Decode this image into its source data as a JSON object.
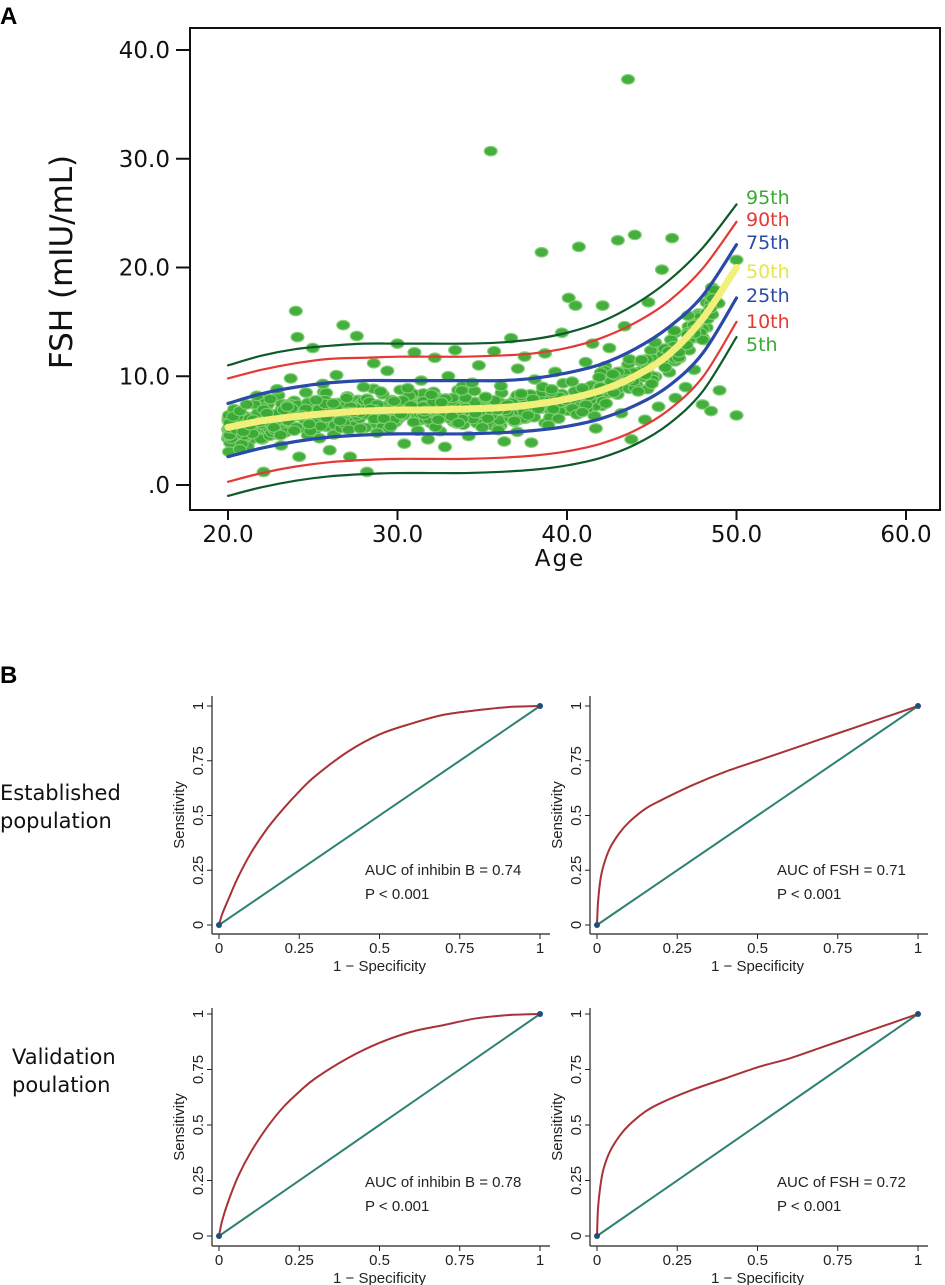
{
  "panel_a_letter": "A",
  "panel_b_letter": "B",
  "chart_data": [
    {
      "type": "scatter",
      "panel": "A",
      "title": "",
      "xlabel": "Age",
      "ylabel": "FSH (mIU/mL)",
      "xlim": [
        20,
        60
      ],
      "ylim": [
        0,
        40
      ],
      "xticks": [
        20,
        30,
        40,
        50,
        60
      ],
      "xtick_labels": [
        "20.0",
        "30.0",
        "40.0",
        "50.0",
        "60.0"
      ],
      "yticks": [
        0,
        10,
        20,
        30,
        40
      ],
      "ytick_labels": [
        ".0",
        "10.0",
        "20.0",
        "30.0",
        "40.0"
      ],
      "centile_curves": [
        {
          "name": "95th",
          "color": "#0f5a2a",
          "label_color": "#3aaa35",
          "ages": [
            20,
            22,
            24,
            26,
            28,
            30,
            32,
            34,
            36,
            38,
            40,
            42,
            44,
            46,
            48,
            50
          ],
          "values": [
            11.0,
            11.9,
            12.5,
            12.8,
            13.0,
            13.0,
            13.0,
            13.0,
            13.1,
            13.4,
            14.0,
            15.0,
            16.6,
            18.8,
            21.8,
            25.8
          ]
        },
        {
          "name": "90th",
          "color": "#e53935",
          "label_color": "#e53935",
          "ages": [
            20,
            22,
            24,
            26,
            28,
            30,
            32,
            34,
            36,
            38,
            40,
            42,
            44,
            46,
            48,
            50
          ],
          "values": [
            9.8,
            10.6,
            11.2,
            11.6,
            11.7,
            11.8,
            11.8,
            11.8,
            11.9,
            12.1,
            12.6,
            13.5,
            14.9,
            16.9,
            19.9,
            24.2
          ]
        },
        {
          "name": "75th",
          "color": "#2a4aa8",
          "label_color": "#2a4aa8",
          "ages": [
            20,
            22,
            24,
            26,
            28,
            30,
            32,
            34,
            36,
            38,
            40,
            42,
            44,
            46,
            48,
            50
          ],
          "values": [
            7.5,
            8.4,
            9.0,
            9.4,
            9.6,
            9.6,
            9.6,
            9.6,
            9.6,
            9.8,
            10.3,
            11.1,
            12.5,
            14.5,
            17.4,
            22.1
          ]
        },
        {
          "name": "50th",
          "color": "#f2ef7a",
          "label_color": "#e6e64a",
          "ages": [
            20,
            22,
            24,
            26,
            28,
            30,
            32,
            34,
            36,
            38,
            40,
            42,
            44,
            46,
            48,
            50
          ],
          "values": [
            5.3,
            5.9,
            6.3,
            6.6,
            6.8,
            6.9,
            6.9,
            7.0,
            7.1,
            7.4,
            7.9,
            8.7,
            10.0,
            12.0,
            15.3,
            20.0
          ]
        },
        {
          "name": "25th",
          "color": "#2a4aa8",
          "label_color": "#2a4aa8",
          "ages": [
            20,
            22,
            24,
            26,
            28,
            30,
            32,
            34,
            36,
            38,
            40,
            42,
            44,
            46,
            48,
            50
          ],
          "values": [
            2.6,
            3.4,
            4.0,
            4.4,
            4.6,
            4.7,
            4.7,
            4.7,
            4.8,
            5.0,
            5.4,
            6.1,
            7.3,
            9.1,
            12.1,
            17.2
          ]
        },
        {
          "name": "10th",
          "color": "#e53935",
          "label_color": "#e53935",
          "ages": [
            20,
            22,
            24,
            26,
            28,
            30,
            32,
            34,
            36,
            38,
            40,
            42,
            44,
            46,
            48,
            50
          ],
          "values": [
            0.3,
            1.1,
            1.7,
            2.1,
            2.3,
            2.4,
            2.4,
            2.4,
            2.5,
            2.7,
            3.1,
            3.8,
            5.0,
            6.9,
            9.9,
            15.0
          ]
        },
        {
          "name": "5th",
          "color": "#0f5a2a",
          "label_color": "#3aaa35",
          "ages": [
            20,
            22,
            24,
            26,
            28,
            30,
            32,
            34,
            36,
            38,
            40,
            42,
            44,
            46,
            48,
            50
          ],
          "values": [
            -1.0,
            -0.2,
            0.4,
            0.8,
            1.0,
            1.1,
            1.1,
            1.1,
            1.2,
            1.4,
            1.8,
            2.5,
            3.7,
            5.6,
            8.6,
            13.6
          ]
        }
      ],
      "scatter_points": [
        [
          20.1,
          5.7
        ],
        [
          20.3,
          6.3
        ],
        [
          20.5,
          5.1
        ],
        [
          20.7,
          6.8
        ],
        [
          20.9,
          4.9
        ],
        [
          21.1,
          7.4
        ],
        [
          21.3,
          5.5
        ],
        [
          21.5,
          6.0
        ],
        [
          21.7,
          8.2
        ],
        [
          21.9,
          5.8
        ],
        [
          22.1,
          1.2
        ],
        [
          22.3,
          6.6
        ],
        [
          22.5,
          7.9
        ],
        [
          22.7,
          5.3
        ],
        [
          22.9,
          8.8
        ],
        [
          23.1,
          4.6
        ],
        [
          23.3,
          6.9
        ],
        [
          23.5,
          7.2
        ],
        [
          23.7,
          9.8
        ],
        [
          23.9,
          5.0
        ],
        [
          24.0,
          16.0
        ],
        [
          24.1,
          13.6
        ],
        [
          24.2,
          2.6
        ],
        [
          24.4,
          6.4
        ],
        [
          24.6,
          8.5
        ],
        [
          24.8,
          5.6
        ],
        [
          25.0,
          12.6
        ],
        [
          25.2,
          7.8
        ],
        [
          25.4,
          4.3
        ],
        [
          25.6,
          9.3
        ],
        [
          25.8,
          6.2
        ],
        [
          26.0,
          3.2
        ],
        [
          26.2,
          7.5
        ],
        [
          26.4,
          10.1
        ],
        [
          26.6,
          5.9
        ],
        [
          26.8,
          14.7
        ],
        [
          27.0,
          8.0
        ],
        [
          27.2,
          2.6
        ],
        [
          27.4,
          6.7
        ],
        [
          27.6,
          13.7
        ],
        [
          27.8,
          5.2
        ],
        [
          28.0,
          9.0
        ],
        [
          28.2,
          1.2
        ],
        [
          28.4,
          7.0
        ],
        [
          28.6,
          11.2
        ],
        [
          28.8,
          4.8
        ],
        [
          29.0,
          8.6
        ],
        [
          29.2,
          6.1
        ],
        [
          29.4,
          10.5
        ],
        [
          29.6,
          5.4
        ],
        [
          29.8,
          7.7
        ],
        [
          30.0,
          13.0
        ],
        [
          30.2,
          6.5
        ],
        [
          30.4,
          3.8
        ],
        [
          30.6,
          8.9
        ],
        [
          30.8,
          7.3
        ],
        [
          31.0,
          12.2
        ],
        [
          31.2,
          5.0
        ],
        [
          31.4,
          9.6
        ],
        [
          31.6,
          6.8
        ],
        [
          31.8,
          4.2
        ],
        [
          32.0,
          8.3
        ],
        [
          32.2,
          11.7
        ],
        [
          32.4,
          6.0
        ],
        [
          32.6,
          7.6
        ],
        [
          32.8,
          3.5
        ],
        [
          33.0,
          10.0
        ],
        [
          33.2,
          6.3
        ],
        [
          33.4,
          12.4
        ],
        [
          33.6,
          5.7
        ],
        [
          33.8,
          8.7
        ],
        [
          34.0,
          7.1
        ],
        [
          34.2,
          4.5
        ],
        [
          34.4,
          9.4
        ],
        [
          34.6,
          6.6
        ],
        [
          34.8,
          11.0
        ],
        [
          35.0,
          5.3
        ],
        [
          35.2,
          8.1
        ],
        [
          35.5,
          30.7
        ],
        [
          35.7,
          12.3
        ],
        [
          35.9,
          6.9
        ],
        [
          36.1,
          9.1
        ],
        [
          36.3,
          4.0
        ],
        [
          36.5,
          7.4
        ],
        [
          36.7,
          13.5
        ],
        [
          36.9,
          5.9
        ],
        [
          37.1,
          10.7
        ],
        [
          37.3,
          8.4
        ],
        [
          37.5,
          11.8
        ],
        [
          37.7,
          6.4
        ],
        [
          37.9,
          3.9
        ],
        [
          38.1,
          9.7
        ],
        [
          38.3,
          7.0
        ],
        [
          38.5,
          21.4
        ],
        [
          38.7,
          12.1
        ],
        [
          38.9,
          5.5
        ],
        [
          39.1,
          8.8
        ],
        [
          39.3,
          10.4
        ],
        [
          39.5,
          6.1
        ],
        [
          39.7,
          14.0
        ],
        [
          39.9,
          7.8
        ],
        [
          40.1,
          17.2
        ],
        [
          40.3,
          9.5
        ],
        [
          40.5,
          16.5
        ],
        [
          40.7,
          21.9
        ],
        [
          40.9,
          6.7
        ],
        [
          41.1,
          11.3
        ],
        [
          41.3,
          8.2
        ],
        [
          41.5,
          13.0
        ],
        [
          41.7,
          5.2
        ],
        [
          41.9,
          9.9
        ],
        [
          42.1,
          16.5
        ],
        [
          42.3,
          7.5
        ],
        [
          42.5,
          12.6
        ],
        [
          42.7,
          10.2
        ],
        [
          43.0,
          22.5
        ],
        [
          43.2,
          6.6
        ],
        [
          43.4,
          14.6
        ],
        [
          43.6,
          37.3
        ],
        [
          43.8,
          4.2
        ],
        [
          44.0,
          23.0
        ],
        [
          44.2,
          8.6
        ],
        [
          44.4,
          11.5
        ],
        [
          44.6,
          6.0
        ],
        [
          44.8,
          16.8
        ],
        [
          45.0,
          9.3
        ],
        [
          45.2,
          13.1
        ],
        [
          45.4,
          7.2
        ],
        [
          45.6,
          19.8
        ],
        [
          45.8,
          10.8
        ],
        [
          46.0,
          12.3
        ],
        [
          46.2,
          22.7
        ],
        [
          46.4,
          8.0
        ],
        [
          46.6,
          12.2
        ],
        [
          47.0,
          9.0
        ],
        [
          47.5,
          10.6
        ],
        [
          48.0,
          7.4
        ],
        [
          48.5,
          6.8
        ],
        [
          49.0,
          8.7
        ],
        [
          50.0,
          6.4
        ],
        [
          50.0,
          20.7
        ]
      ],
      "scatter_band": {
        "age_range": [
          20,
          49
        ],
        "median_offset_range": [
          -2.5,
          2.5
        ],
        "count": 520,
        "color": "#3aaa35"
      }
    },
    {
      "type": "line",
      "panel": "B",
      "row_label": "Established population",
      "row_label_lines": [
        "Established",
        "population"
      ],
      "xlabel": "1 − Specificity",
      "ylabel": "Sensitivity",
      "xlim": [
        0,
        1
      ],
      "ylim": [
        0,
        1
      ],
      "xtick_labels": [
        "0",
        "0.25",
        "0.5",
        "0.75",
        "1"
      ],
      "ytick_labels": [
        "0",
        "0.25",
        "0.5",
        "0.75",
        "1"
      ],
      "series": [
        {
          "name": "ROC curve",
          "color": "#a83237",
          "x": [
            0,
            0.01,
            0.03,
            0.06,
            0.1,
            0.15,
            0.2,
            0.25,
            0.3,
            0.4,
            0.5,
            0.6,
            0.7,
            0.8,
            0.9,
            1
          ],
          "y": [
            0,
            0.05,
            0.12,
            0.22,
            0.33,
            0.44,
            0.53,
            0.61,
            0.68,
            0.79,
            0.87,
            0.92,
            0.96,
            0.98,
            0.995,
            1
          ]
        },
        {
          "name": "Reference line",
          "color": "#2e8073",
          "x": [
            0,
            1
          ],
          "y": [
            0,
            1
          ]
        }
      ],
      "annotation_lines": [
        "AUC of inhibin B = 0.74",
        "P < 0.001"
      ]
    },
    {
      "type": "line",
      "panel": "B",
      "row_label": "Established population",
      "xlabel": "1 − Specificity",
      "ylabel": "Sensitivity",
      "xlim": [
        0,
        1
      ],
      "ylim": [
        0,
        1
      ],
      "xtick_labels": [
        "0",
        "0.25",
        "0.5",
        "0.75",
        "1"
      ],
      "ytick_labels": [
        "0",
        "0.25",
        "0.5",
        "0.75",
        "1"
      ],
      "series": [
        {
          "name": "ROC curve",
          "color": "#a83237",
          "x": [
            0,
            0.003,
            0.01,
            0.02,
            0.04,
            0.07,
            0.1,
            0.15,
            0.2,
            0.3,
            0.4,
            0.5,
            0.6,
            0.7,
            0.8,
            0.9,
            1
          ],
          "y": [
            0,
            0.1,
            0.2,
            0.27,
            0.35,
            0.42,
            0.47,
            0.53,
            0.57,
            0.64,
            0.7,
            0.75,
            0.8,
            0.85,
            0.9,
            0.95,
            1
          ]
        },
        {
          "name": "Reference line",
          "color": "#2e8073",
          "x": [
            0,
            1
          ],
          "y": [
            0,
            1
          ]
        }
      ],
      "annotation_lines": [
        "AUC of FSH = 0.71",
        "P < 0.001"
      ]
    },
    {
      "type": "line",
      "panel": "B",
      "row_label": "Validation poulation",
      "row_label_lines": [
        "Validation",
        "poulation"
      ],
      "xlabel": "1 − Specificity",
      "ylabel": "Sensitivity",
      "xlim": [
        0,
        1
      ],
      "ylim": [
        0,
        1
      ],
      "xtick_labels": [
        "0",
        "0.25",
        "0.5",
        "0.75",
        "1"
      ],
      "ytick_labels": [
        "0",
        "0.25",
        "0.5",
        "0.75",
        "1"
      ],
      "series": [
        {
          "name": "ROC curve",
          "color": "#a83237",
          "x": [
            0,
            0.01,
            0.03,
            0.06,
            0.1,
            0.15,
            0.2,
            0.25,
            0.3,
            0.4,
            0.5,
            0.6,
            0.7,
            0.8,
            0.9,
            1
          ],
          "y": [
            0,
            0.07,
            0.16,
            0.27,
            0.38,
            0.49,
            0.58,
            0.65,
            0.71,
            0.8,
            0.87,
            0.92,
            0.95,
            0.98,
            0.995,
            1
          ]
        },
        {
          "name": "Reference line",
          "color": "#2e8073",
          "x": [
            0,
            1
          ],
          "y": [
            0,
            1
          ]
        }
      ],
      "annotation_lines": [
        "AUC of inhibin B = 0.78",
        "P < 0.001"
      ]
    },
    {
      "type": "line",
      "panel": "B",
      "row_label": "Validation poulation",
      "xlabel": "1 − Specificity",
      "ylabel": "Sensitivity",
      "xlim": [
        0,
        1
      ],
      "ylim": [
        0,
        1
      ],
      "xtick_labels": [
        "0",
        "0.25",
        "0.5",
        "0.75",
        "1"
      ],
      "ytick_labels": [
        "0",
        "0.25",
        "0.5",
        "0.75",
        "1"
      ],
      "series": [
        {
          "name": "ROC curve",
          "color": "#a83237",
          "x": [
            0,
            0.003,
            0.01,
            0.02,
            0.04,
            0.07,
            0.1,
            0.15,
            0.2,
            0.3,
            0.4,
            0.5,
            0.6,
            0.7,
            0.8,
            0.9,
            1
          ],
          "y": [
            0,
            0.12,
            0.22,
            0.3,
            0.38,
            0.45,
            0.5,
            0.56,
            0.6,
            0.66,
            0.71,
            0.76,
            0.8,
            0.85,
            0.9,
            0.95,
            1
          ]
        },
        {
          "name": "Reference line",
          "color": "#2e8073",
          "x": [
            0,
            1
          ],
          "y": [
            0,
            1
          ]
        }
      ],
      "annotation_lines": [
        "AUC of FSH = 0.72",
        "P < 0.001"
      ]
    }
  ]
}
